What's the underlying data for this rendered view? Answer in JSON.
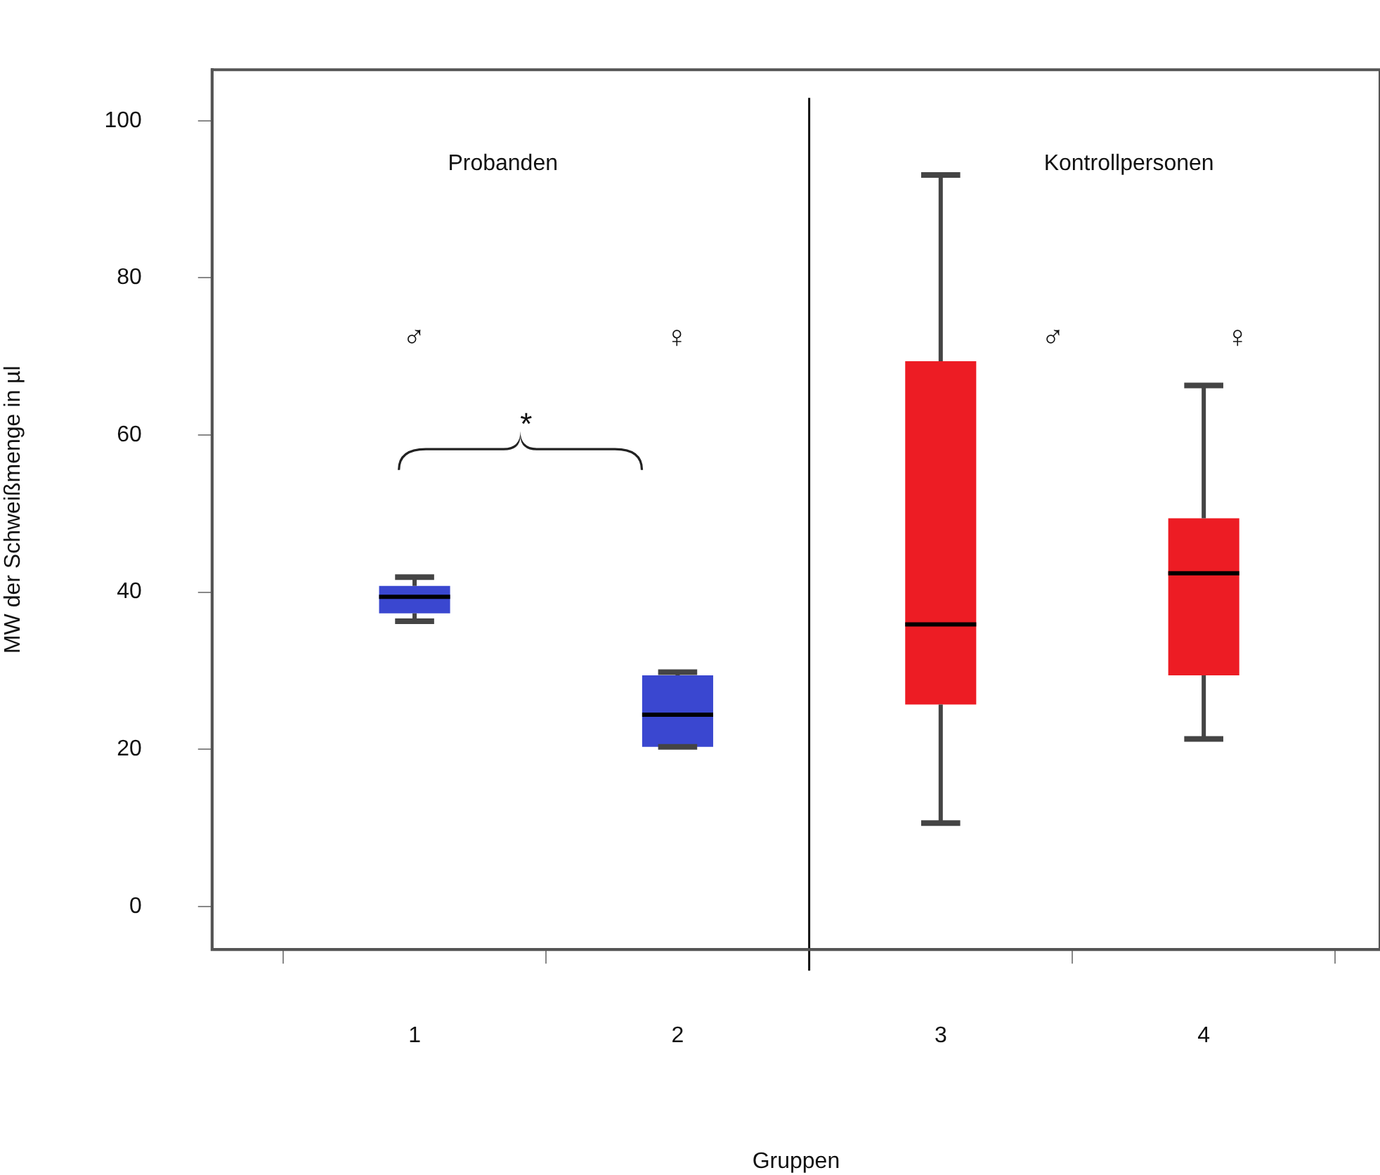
{
  "chart_data": {
    "type": "box",
    "xlabel": "Gruppen",
    "ylabel": "MW der Schweißmenge in µl",
    "x": [
      1,
      2,
      3,
      4
    ],
    "xlim": [
      0.23,
      4.67
    ],
    "xticks": [
      1,
      2,
      3,
      4
    ],
    "colors": [
      "#3a47d0",
      "#3a47d0",
      "#ed1c24",
      "#ed1c24"
    ],
    "boxes": [
      {
        "low": 36.3,
        "q1": 37.3,
        "median": 39.4,
        "q3": 40.8,
        "high": 41.9
      },
      {
        "low": 20.3,
        "q1": 20.3,
        "median": 24.4,
        "q3": 29.4,
        "high": 29.8
      },
      {
        "low": 10.6,
        "q1": 25.7,
        "median": 35.9,
        "q3": 69.4,
        "high": 93.1
      },
      {
        "low": 21.3,
        "q1": 29.4,
        "median": 42.4,
        "q3": 49.4,
        "high": 66.3
      }
    ],
    "ylim": [
      -5.5,
      106.5
    ],
    "yticks": [
      0,
      20,
      40,
      60,
      80,
      100
    ],
    "grid": false,
    "legend": false,
    "ref_lines": [
      {
        "axis": "x",
        "value": 2.5,
        "color": "#111111"
      }
    ],
    "annotations": [
      "Probanden",
      "Kontrollpersonen",
      "♂",
      "♀",
      "♂",
      "♀",
      "*"
    ]
  }
}
